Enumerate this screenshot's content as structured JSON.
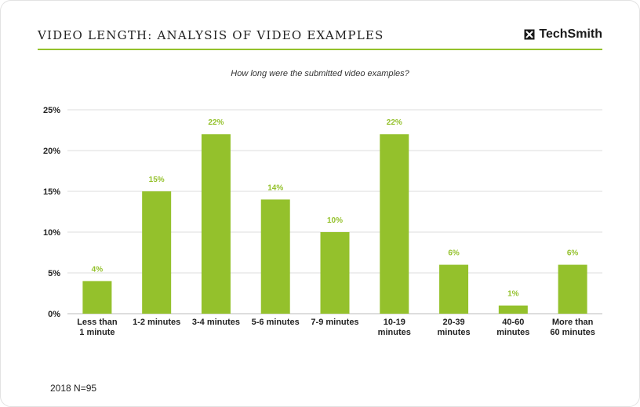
{
  "header": {
    "title": "VIDEO LENGTH: ANALYSIS OF VIDEO EXAMPLES",
    "brand": "TechSmith",
    "brand_icon": "techsmith-logo-icon"
  },
  "colors": {
    "bar": "#94c12c",
    "rule": "#94c12c",
    "grid": "#dcdcdc"
  },
  "footnote": "2018 N=95",
  "chart_data": {
    "type": "bar",
    "title": "How long were the submitted video examples?",
    "categories": [
      [
        "Less than",
        "1 minute"
      ],
      [
        "1-2 minutes"
      ],
      [
        "3-4 minutes"
      ],
      [
        "5-6 minutes"
      ],
      [
        "7-9 minutes"
      ],
      [
        "10-19",
        "minutes"
      ],
      [
        "20-39",
        "minutes"
      ],
      [
        "40-60",
        "minutes"
      ],
      [
        "More than",
        "60 minutes"
      ]
    ],
    "values": [
      4,
      15,
      22,
      14,
      10,
      22,
      6,
      1,
      6
    ],
    "data_labels": [
      "4%",
      "15%",
      "22%",
      "14%",
      "10%",
      "22%",
      "6%",
      "1%",
      "6%"
    ],
    "ylim": [
      0,
      25
    ],
    "yticks": [
      0,
      5,
      10,
      15,
      20,
      25
    ],
    "ytick_labels": [
      "0%",
      "5%",
      "10%",
      "15%",
      "20%",
      "25%"
    ],
    "grid": true,
    "xlabel": "",
    "ylabel": ""
  }
}
